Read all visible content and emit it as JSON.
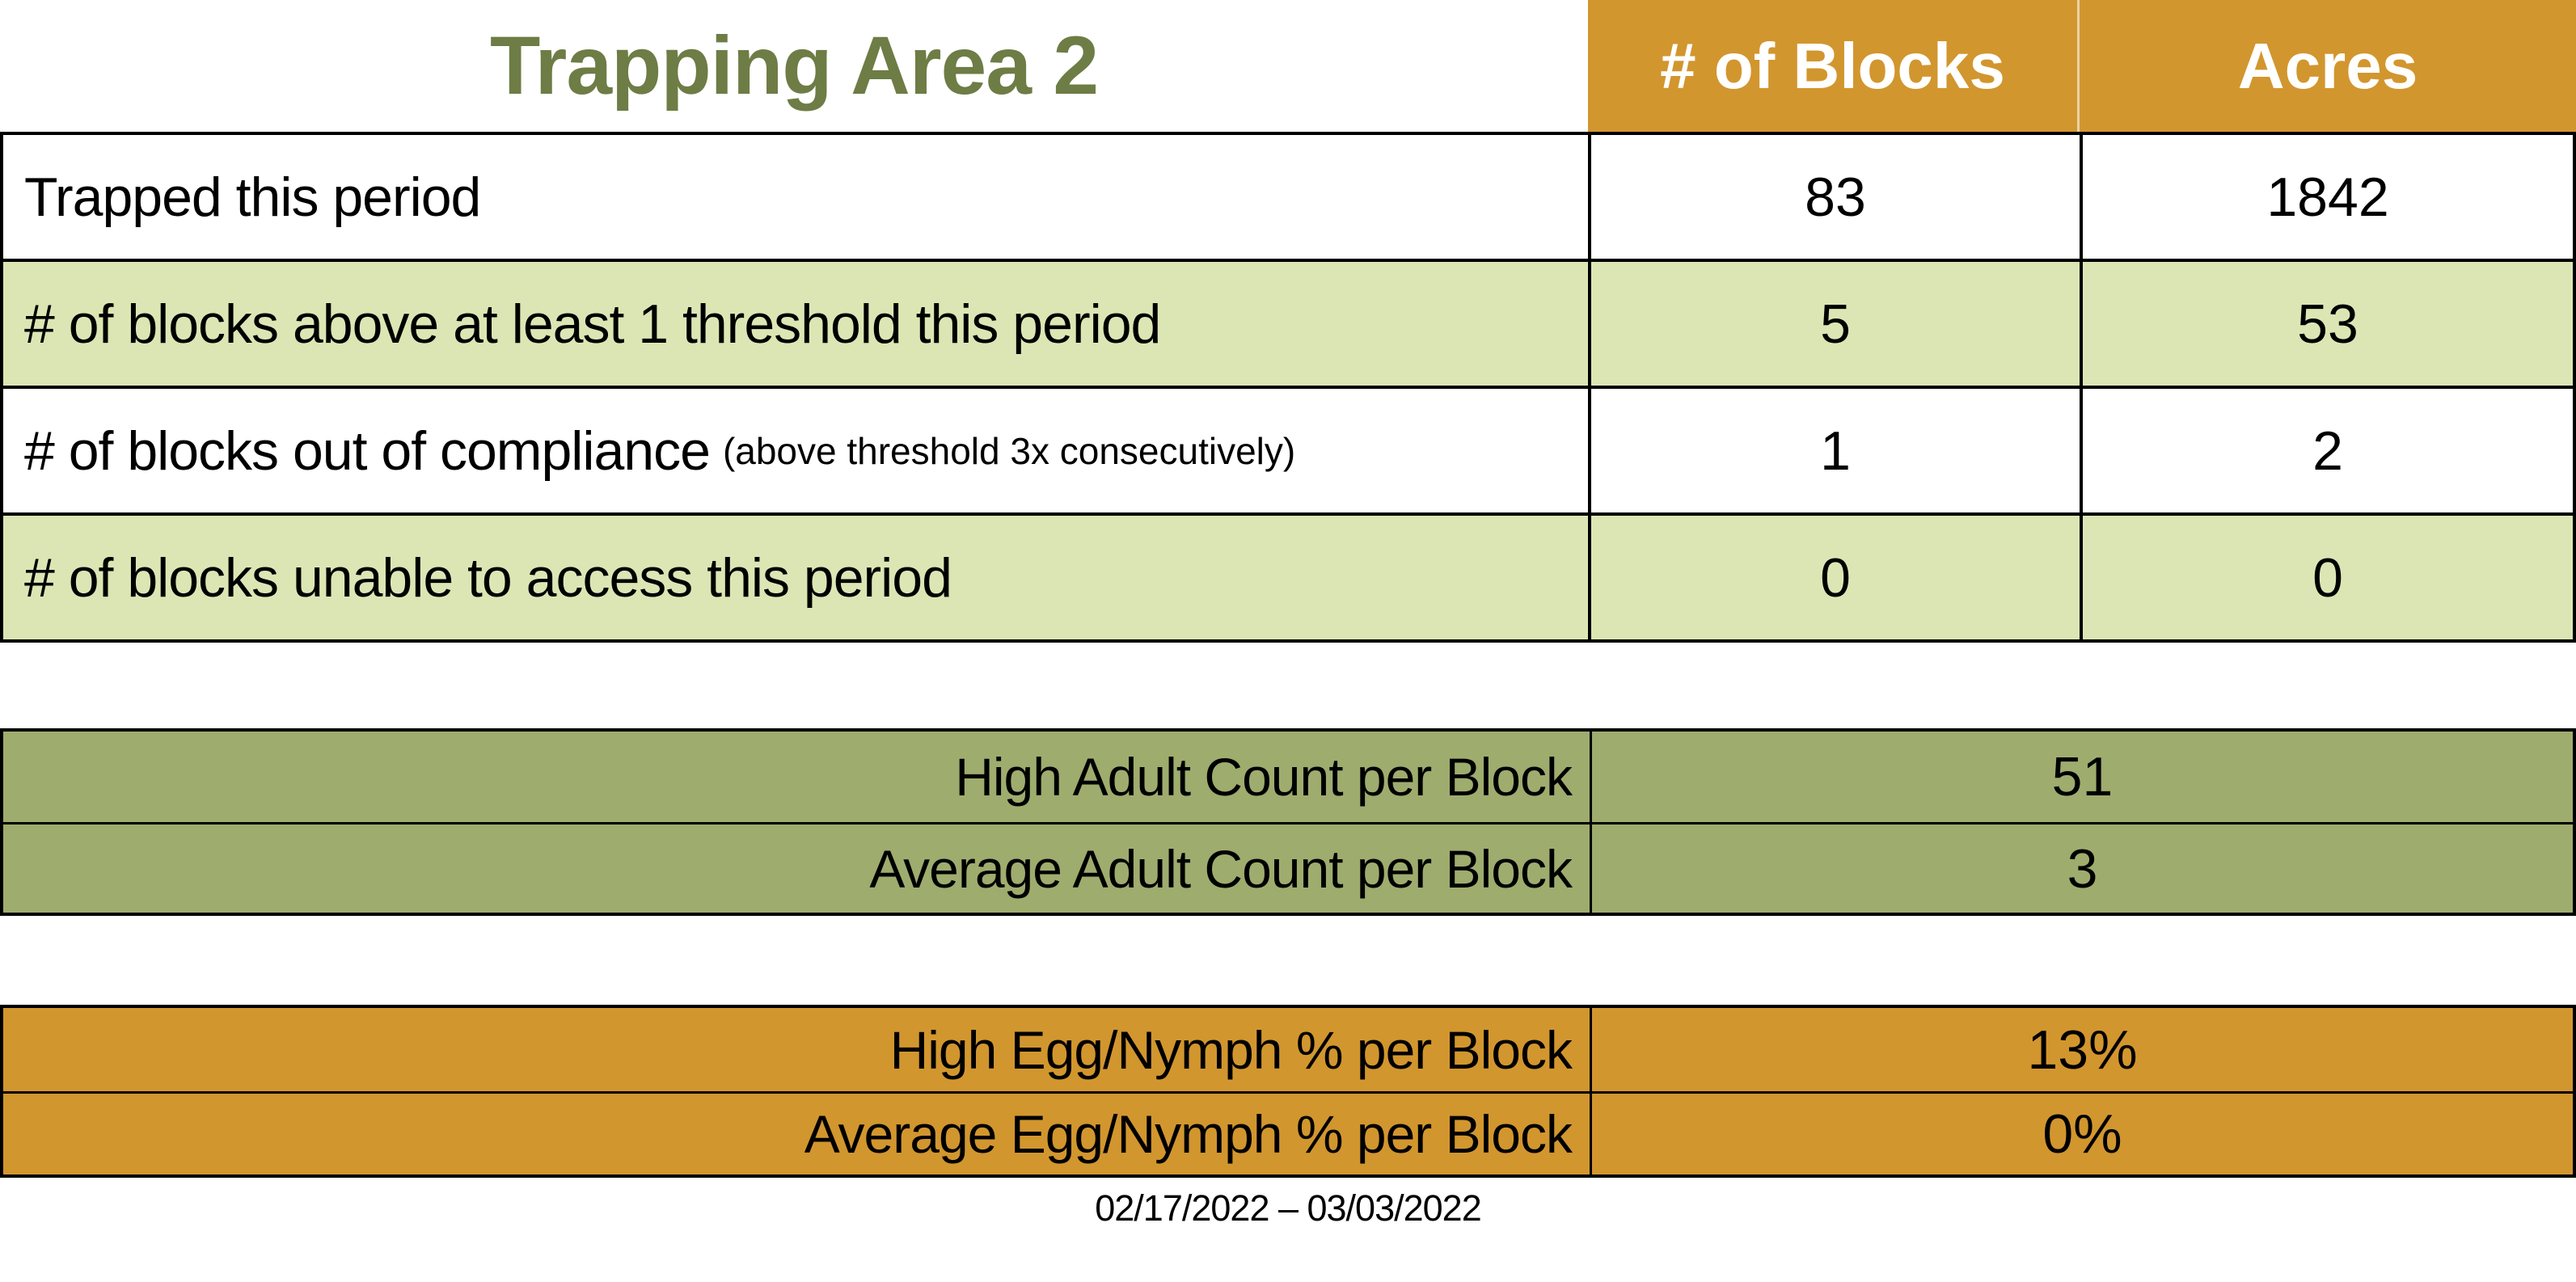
{
  "title": "Trapping Area 2",
  "period": "02/17/2022 – 03/03/2022",
  "colors": {
    "header_orange": "#D2962E",
    "row_light_green": "#DCE6B4",
    "section_sage_green": "#9EAC6E",
    "title_olive_green": "#6E7C45",
    "border_black": "#000000",
    "header_text_white": "#FFFFFF"
  },
  "table": {
    "columns": [
      "# of Blocks",
      "Acres"
    ],
    "rows": [
      {
        "label": "Trapped this period",
        "note": "",
        "blocks": "83",
        "acres": "1842"
      },
      {
        "label": "# of blocks above at least 1 threshold this period",
        "note": "",
        "blocks": "5",
        "acres": "53"
      },
      {
        "label": "# of blocks out of compliance",
        "note": "(above threshold 3x consecutively)",
        "blocks": "1",
        "acres": "2"
      },
      {
        "label": "# of blocks unable to access this period",
        "note": "",
        "blocks": "0",
        "acres": "0"
      }
    ]
  },
  "adult": {
    "rows": [
      {
        "label": "High Adult Count per Block",
        "value": "51"
      },
      {
        "label": "Average Adult Count per Block",
        "value": "3"
      }
    ]
  },
  "egg": {
    "rows": [
      {
        "label": "High Egg/Nymph % per Block",
        "value": "13%"
      },
      {
        "label": "Average Egg/Nymph % per Block",
        "value": "0%"
      }
    ]
  },
  "chart_data": {
    "type": "table",
    "title": "Trapping Area 2",
    "columns": [
      "",
      "# of Blocks",
      "Acres"
    ],
    "rows": [
      [
        "Trapped this period",
        83,
        1842
      ],
      [
        "# of blocks above at least 1 threshold this period",
        5,
        53
      ],
      [
        "# of blocks out of compliance (above threshold 3x consecutively)",
        1,
        2
      ],
      [
        "# of blocks unable to access this period",
        0,
        0
      ]
    ],
    "summary_rows": [
      [
        "High Adult Count per Block",
        "51"
      ],
      [
        "Average Adult Count per Block",
        "3"
      ],
      [
        "High Egg/Nymph % per Block",
        "13%"
      ],
      [
        "Average Egg/Nymph % per Block",
        "0%"
      ]
    ],
    "caption": "02/17/2022 – 03/03/2022"
  }
}
